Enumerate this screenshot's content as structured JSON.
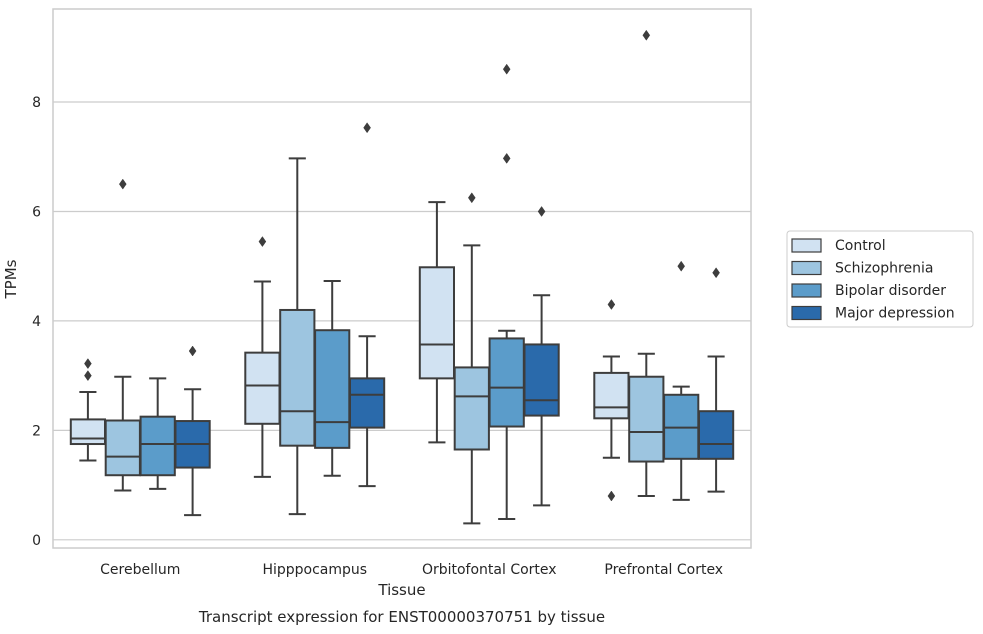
{
  "caption": "Transcript expression for ENST00000370751 by tissue",
  "chart_data": {
    "type": "box",
    "xlabel": "Tissue",
    "ylabel": "TPMs",
    "ylim": [
      -0.15,
      9.7
    ],
    "yticks": [
      "0",
      "2",
      "4",
      "6",
      "8"
    ],
    "grid": true,
    "legend_position": "right",
    "categories": [
      "Cerebellum",
      "Hipppocampus",
      "Orbitofontal Cortex",
      "Prefrontal Cortex"
    ],
    "series": [
      {
        "name": "Control",
        "color": "#d1e2f2",
        "boxes": [
          {
            "whislo": 1.45,
            "q1": 1.75,
            "med": 1.85,
            "q3": 2.2,
            "whishi": 2.7,
            "fliers": [
              3.0,
              3.22
            ]
          },
          {
            "whislo": 1.15,
            "q1": 2.12,
            "med": 2.82,
            "q3": 3.42,
            "whishi": 4.72,
            "fliers": [
              5.45
            ]
          },
          {
            "whislo": 1.78,
            "q1": 2.95,
            "med": 3.57,
            "q3": 4.98,
            "whishi": 6.17,
            "fliers": []
          },
          {
            "whislo": 1.5,
            "q1": 2.22,
            "med": 2.42,
            "q3": 3.05,
            "whishi": 3.35,
            "fliers": [
              0.8,
              4.3
            ]
          }
        ]
      },
      {
        "name": "Schizophrenia",
        "color": "#9dc5e0",
        "boxes": [
          {
            "whislo": 0.9,
            "q1": 1.18,
            "med": 1.52,
            "q3": 2.18,
            "whishi": 2.98,
            "fliers": [
              6.5
            ]
          },
          {
            "whislo": 0.47,
            "q1": 1.72,
            "med": 2.35,
            "q3": 4.2,
            "whishi": 6.97,
            "fliers": []
          },
          {
            "whislo": 0.3,
            "q1": 1.65,
            "med": 2.62,
            "q3": 3.15,
            "whishi": 5.38,
            "fliers": [
              6.25
            ]
          },
          {
            "whislo": 0.8,
            "q1": 1.43,
            "med": 1.97,
            "q3": 2.98,
            "whishi": 3.4,
            "fliers": [
              9.22
            ]
          }
        ]
      },
      {
        "name": "Bipolar disorder",
        "color": "#5b9cca",
        "boxes": [
          {
            "whislo": 0.93,
            "q1": 1.18,
            "med": 1.75,
            "q3": 2.25,
            "whishi": 2.95,
            "fliers": []
          },
          {
            "whislo": 1.17,
            "q1": 1.68,
            "med": 2.15,
            "q3": 3.83,
            "whishi": 4.73,
            "fliers": []
          },
          {
            "whislo": 0.38,
            "q1": 2.07,
            "med": 2.78,
            "q3": 3.68,
            "whishi": 3.82,
            "fliers": [
              6.97,
              8.6
            ]
          },
          {
            "whislo": 0.73,
            "q1": 1.48,
            "med": 2.05,
            "q3": 2.65,
            "whishi": 2.8,
            "fliers": [
              5.0
            ]
          }
        ]
      },
      {
        "name": "Major depression",
        "color": "#2a6aab",
        "boxes": [
          {
            "whislo": 0.45,
            "q1": 1.32,
            "med": 1.75,
            "q3": 2.17,
            "whishi": 2.75,
            "fliers": [
              3.45
            ]
          },
          {
            "whislo": 0.98,
            "q1": 2.05,
            "med": 2.65,
            "q3": 2.95,
            "whishi": 3.72,
            "fliers": [
              7.53
            ]
          },
          {
            "whislo": 0.63,
            "q1": 2.27,
            "med": 2.55,
            "q3": 3.57,
            "whishi": 4.47,
            "fliers": [
              6.0
            ]
          },
          {
            "whislo": 0.88,
            "q1": 1.48,
            "med": 1.75,
            "q3": 2.35,
            "whishi": 3.35,
            "fliers": [
              4.88
            ]
          }
        ]
      }
    ]
  }
}
